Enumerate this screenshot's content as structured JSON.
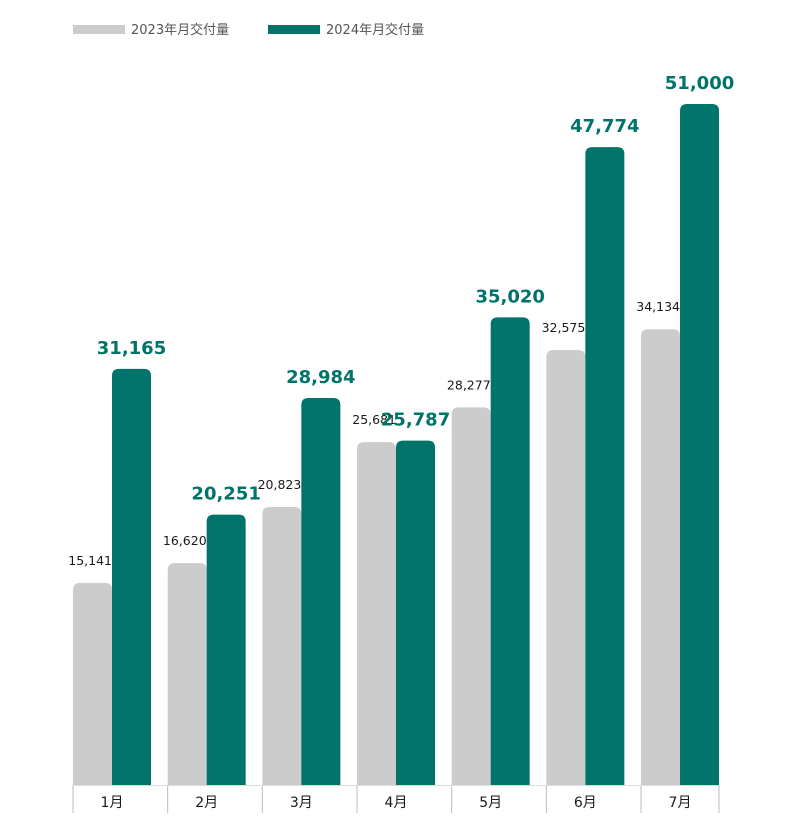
{
  "chart_data": {
    "type": "bar",
    "categories": [
      "1月",
      "2月",
      "3月",
      "4月",
      "5月",
      "6月",
      "7月"
    ],
    "series": [
      {
        "name": "2023年月交付量",
        "values": [
          15141,
          16620,
          20823,
          25681,
          28277,
          32575,
          34134
        ],
        "labels": [
          "15,141",
          "16,620",
          "20,823",
          "25,681",
          "28,277",
          "32,575",
          "34,134"
        ],
        "color": "#cccccc",
        "label_color": "#1a1a1a"
      },
      {
        "name": "2024年月交付量",
        "values": [
          31165,
          20251,
          28984,
          25787,
          35020,
          47774,
          51000
        ],
        "labels": [
          "31,165",
          "20,251",
          "28,984",
          "25,787",
          "35,020",
          "47,774",
          "51,000"
        ],
        "color": "#00736a",
        "label_color": "#00736a"
      }
    ],
    "ylim": [
      0,
      51000
    ],
    "grid": false,
    "legend_position": "top-left",
    "title": "",
    "xlabel": "",
    "ylabel": ""
  }
}
